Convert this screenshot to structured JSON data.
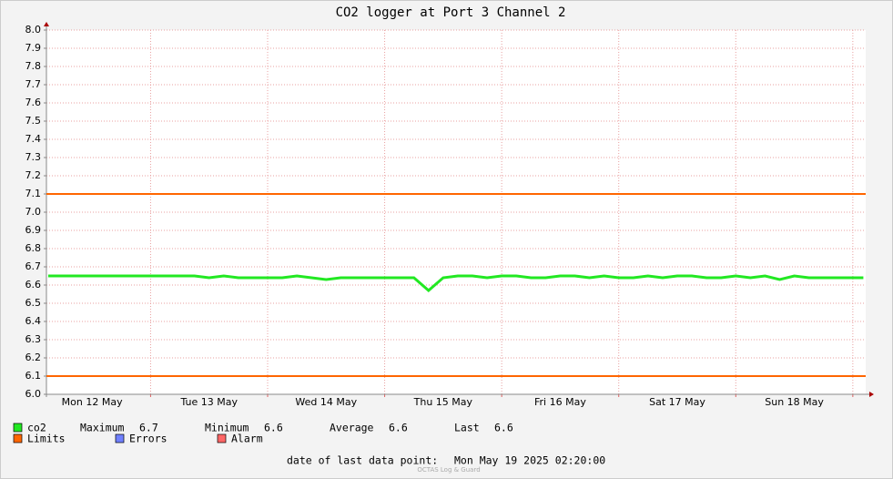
{
  "chart_data": {
    "type": "line",
    "title": "CO2 logger at Port 3 Channel 2",
    "x": [
      0.125,
      0.25,
      0.375,
      0.5,
      0.625,
      0.75,
      0.875,
      1.0,
      1.125,
      1.25,
      1.375,
      1.5,
      1.625,
      1.75,
      1.875,
      2.0,
      2.125,
      2.25,
      2.375,
      2.5,
      2.625,
      2.75,
      2.875,
      3.0,
      3.125,
      3.25,
      3.375,
      3.5,
      3.625,
      3.75,
      3.875,
      4.0,
      4.125,
      4.25,
      4.375,
      4.5,
      4.625,
      4.75,
      4.875,
      5.0,
      5.125,
      5.25,
      5.375,
      5.5,
      5.625,
      5.75,
      5.875,
      6.0,
      6.125,
      6.25,
      6.375,
      6.5,
      6.625,
      6.75,
      6.875,
      7.0,
      7.09
    ],
    "series": [
      {
        "name": "co2",
        "color": "#22e822",
        "values": [
          6.65,
          6.65,
          6.65,
          6.65,
          6.65,
          6.65,
          6.65,
          6.65,
          6.65,
          6.65,
          6.65,
          6.64,
          6.65,
          6.64,
          6.64,
          6.64,
          6.64,
          6.65,
          6.64,
          6.63,
          6.64,
          6.64,
          6.64,
          6.64,
          6.64,
          6.64,
          6.57,
          6.64,
          6.65,
          6.65,
          6.64,
          6.65,
          6.65,
          6.64,
          6.64,
          6.65,
          6.65,
          6.64,
          6.65,
          6.64,
          6.64,
          6.65,
          6.64,
          6.65,
          6.65,
          6.64,
          6.64,
          6.65,
          6.64,
          6.65,
          6.63,
          6.65,
          6.64,
          6.64,
          6.64,
          6.64,
          6.64
        ]
      }
    ],
    "limits": {
      "name": "Limits",
      "color": "#ff6600",
      "values": [
        7.1,
        6.1
      ]
    },
    "legend_extra": [
      {
        "name": "Errors",
        "color": "#7080ff"
      },
      {
        "name": "Alarm",
        "color": "#ff6666"
      }
    ],
    "stats": [
      {
        "label": "Maximum",
        "value": 6.7
      },
      {
        "label": "Minimum",
        "value": 6.6
      },
      {
        "label": "Average",
        "value": 6.6
      },
      {
        "label": "Last",
        "value": 6.6
      }
    ],
    "ylim": [
      6,
      8
    ],
    "yticks": [
      {
        "value": 6,
        "label": "6.0"
      },
      6.1,
      6.2,
      6.3,
      6.4,
      6.5,
      6.6,
      6.7,
      6.8,
      6.9,
      {
        "value": 7,
        "label": "7.0"
      },
      7.1,
      7.2,
      7.3,
      7.4,
      7.5,
      7.6,
      7.7,
      7.8,
      7.9,
      {
        "value": 8,
        "label": "8.0"
      }
    ],
    "xlim": [
      0.11,
      7.11
    ],
    "xticks": [
      {
        "value": 0.5,
        "label": "Mon 12 May"
      },
      {
        "value": 1.5,
        "label": "Tue 13 May"
      },
      {
        "value": 2.5,
        "label": "Wed 14 May"
      },
      {
        "value": 3.5,
        "label": "Thu 15 May"
      },
      {
        "value": 4.5,
        "label": "Fri 16 May"
      },
      {
        "value": 5.5,
        "label": "Sat 17 May"
      },
      {
        "value": 6.5,
        "label": "Sun 18 May"
      }
    ],
    "xgrid": [
      1,
      2,
      3,
      4,
      5,
      6,
      7
    ],
    "grid": true,
    "footer": {
      "label": "date of last data point:",
      "value": "Mon May 19 2025 02:20:00"
    },
    "watermark": "OCTAS Log & Guard"
  }
}
